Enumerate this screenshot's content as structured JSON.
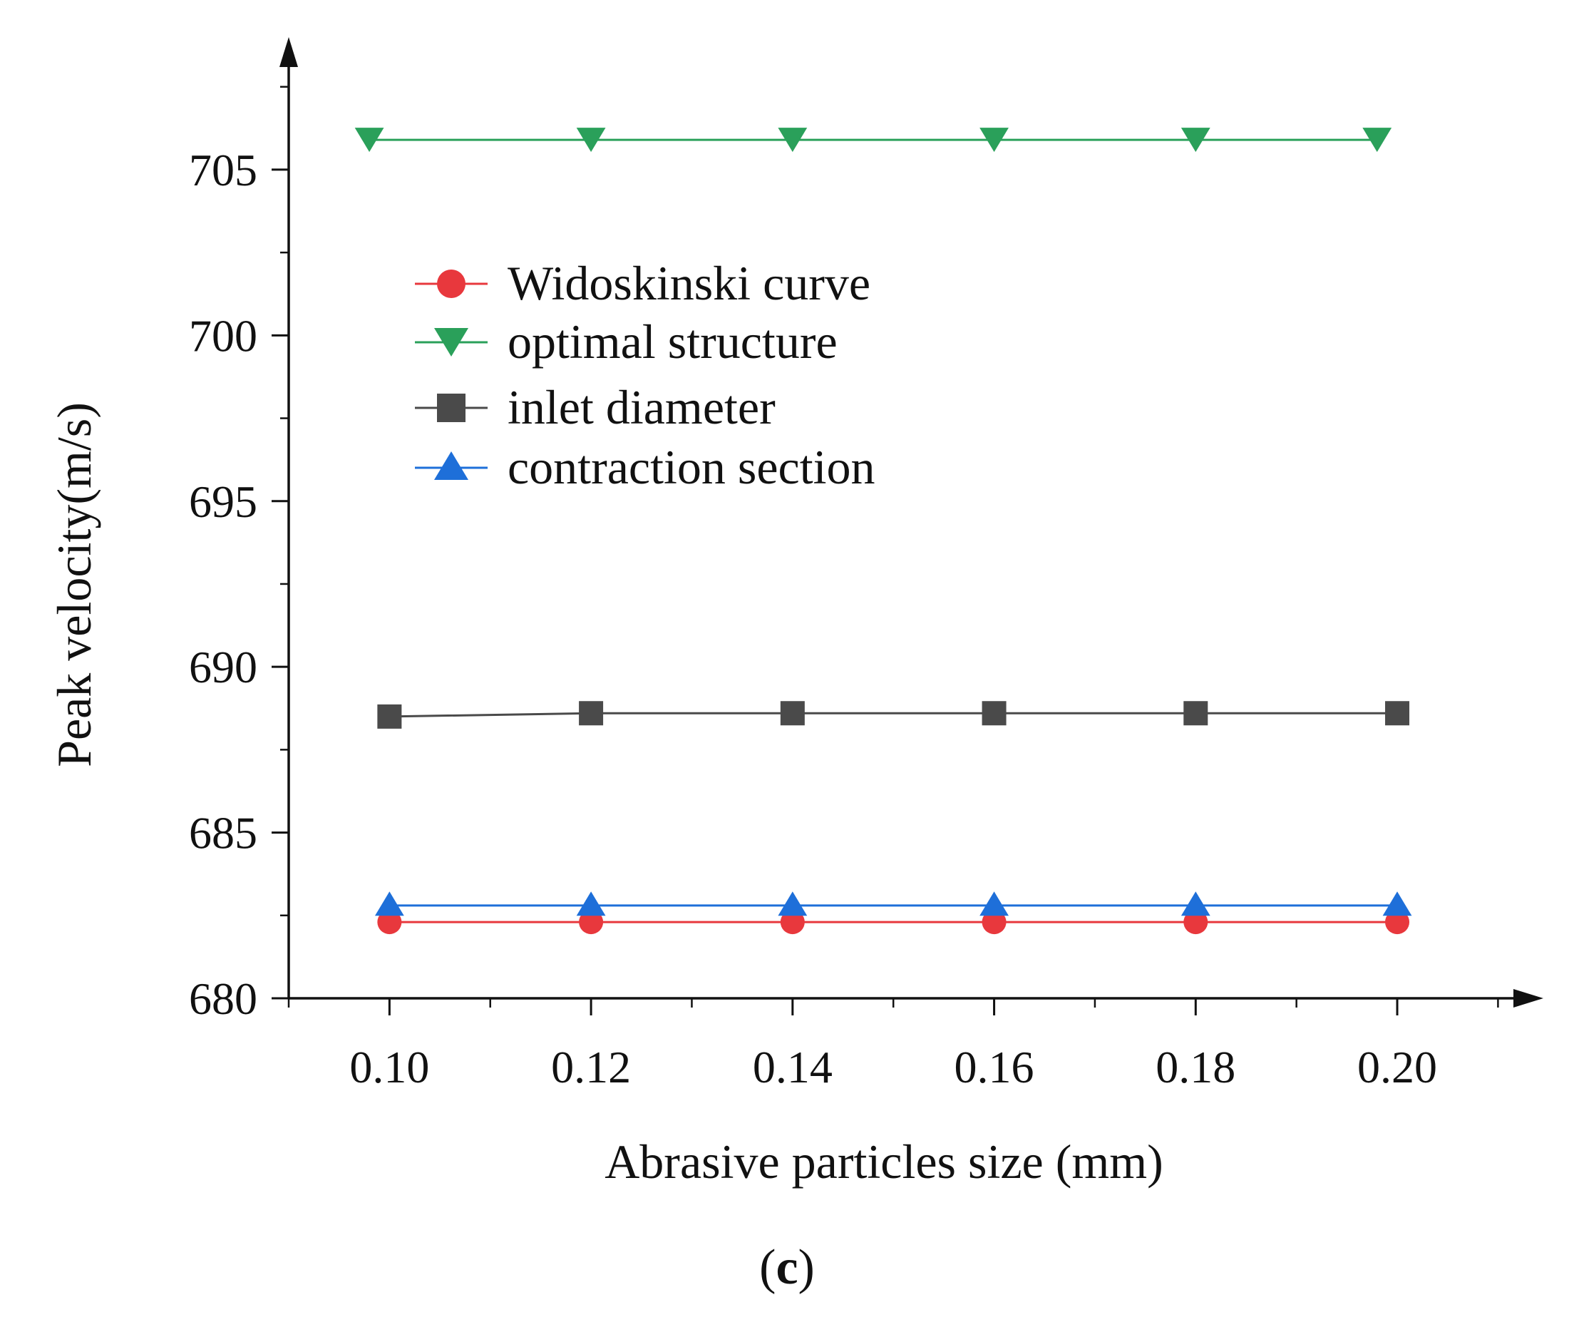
{
  "chart_data": {
    "type": "line",
    "title": "",
    "xlabel": "Abrasive particles size (mm)",
    "ylabel": "Peak velocity(m/s)",
    "xlim": [
      0.09,
      0.2145
    ],
    "ylim": [
      680,
      709
    ],
    "x_ticks": [
      0.1,
      0.12,
      0.14,
      0.16,
      0.18,
      0.2
    ],
    "x_tick_labels": [
      "0.10",
      "0.12",
      "0.14",
      "0.16",
      "0.18",
      "0.20"
    ],
    "y_ticks": [
      680,
      685,
      690,
      695,
      700,
      705
    ],
    "y_tick_labels": [
      "680",
      "685",
      "690",
      "695",
      "700",
      "705"
    ],
    "legend_position": "upper-left",
    "grid": false,
    "series": [
      {
        "name": "Widoskinski curve",
        "color": "#e8383d",
        "marker": "circle",
        "x": [
          0.1,
          0.12,
          0.14,
          0.16,
          0.18,
          0.2
        ],
        "values": [
          682.3,
          682.3,
          682.3,
          682.3,
          682.3,
          682.3
        ]
      },
      {
        "name": "optimal structure",
        "color": "#2aa05a",
        "marker": "triangle-down",
        "x": [
          0.098,
          0.12,
          0.14,
          0.16,
          0.18,
          0.198
        ],
        "values": [
          705.9,
          705.9,
          705.9,
          705.9,
          705.9,
          705.9
        ]
      },
      {
        "name": "inlet diameter",
        "color": "#4a4a4a",
        "marker": "square",
        "x": [
          0.1,
          0.12,
          0.14,
          0.16,
          0.18,
          0.2
        ],
        "values": [
          688.5,
          688.6,
          688.6,
          688.6,
          688.6,
          688.6
        ]
      },
      {
        "name": "contraction section",
        "color": "#1e6fd9",
        "marker": "triangle-up",
        "x": [
          0.1,
          0.12,
          0.14,
          0.16,
          0.18,
          0.2
        ],
        "values": [
          682.8,
          682.8,
          682.8,
          682.8,
          682.8,
          682.8
        ]
      }
    ]
  },
  "panel_label": {
    "open": "(",
    "letter": "c",
    "close": ")"
  }
}
